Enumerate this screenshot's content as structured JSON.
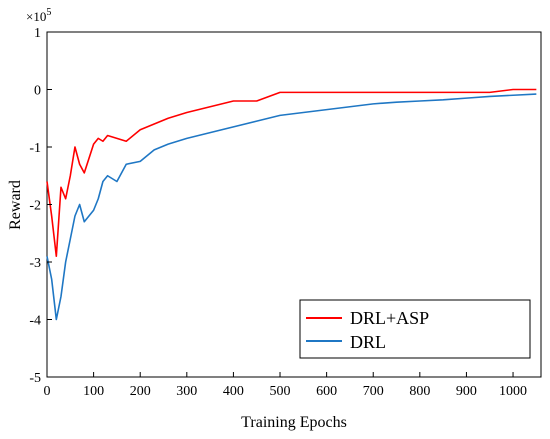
{
  "chart_data": {
    "type": "line",
    "title": "",
    "xlabel": "Training Epochs",
    "ylabel": "Reward",
    "y_multiplier": "×10",
    "y_multiplier_exp": "5",
    "xlim": [
      0,
      1060
    ],
    "ylim": [
      -5,
      1
    ],
    "x_ticks": [
      0,
      100,
      200,
      300,
      400,
      500,
      600,
      700,
      800,
      900,
      1000
    ],
    "y_ticks": [
      1,
      0,
      -1,
      -2,
      -3,
      -4,
      -5
    ],
    "grid": false,
    "legend_position": "bottom-right",
    "series": [
      {
        "name": "DRL+ASP",
        "color": "#ff0000",
        "x": [
          0,
          10,
          20,
          30,
          40,
          50,
          60,
          70,
          80,
          90,
          100,
          110,
          120,
          130,
          150,
          170,
          200,
          230,
          260,
          300,
          350,
          400,
          450,
          500,
          550,
          600,
          650,
          700,
          750,
          800,
          850,
          900,
          950,
          1000,
          1050
        ],
        "y": [
          -1.6,
          -2.2,
          -2.9,
          -1.7,
          -1.9,
          -1.5,
          -1.0,
          -1.3,
          -1.45,
          -1.2,
          -0.95,
          -0.85,
          -0.9,
          -0.8,
          -0.85,
          -0.9,
          -0.7,
          -0.6,
          -0.5,
          -0.4,
          -0.3,
          -0.2,
          -0.2,
          -0.05,
          -0.05,
          -0.05,
          -0.05,
          -0.05,
          -0.05,
          -0.05,
          -0.05,
          -0.05,
          -0.05,
          0.0,
          0.0
        ]
      },
      {
        "name": "DRL",
        "color": "#1f77c4",
        "x": [
          0,
          10,
          20,
          30,
          40,
          50,
          60,
          70,
          80,
          90,
          100,
          110,
          120,
          130,
          150,
          170,
          200,
          230,
          260,
          300,
          350,
          400,
          450,
          500,
          550,
          600,
          650,
          700,
          750,
          800,
          850,
          900,
          950,
          1000,
          1050
        ],
        "y": [
          -2.9,
          -3.3,
          -4.0,
          -3.6,
          -3.0,
          -2.6,
          -2.2,
          -2.0,
          -2.3,
          -2.2,
          -2.1,
          -1.9,
          -1.6,
          -1.5,
          -1.6,
          -1.3,
          -1.25,
          -1.05,
          -0.95,
          -0.85,
          -0.75,
          -0.65,
          -0.55,
          -0.45,
          -0.4,
          -0.35,
          -0.3,
          -0.25,
          -0.22,
          -0.2,
          -0.18,
          -0.15,
          -0.12,
          -0.1,
          -0.08
        ]
      }
    ]
  }
}
